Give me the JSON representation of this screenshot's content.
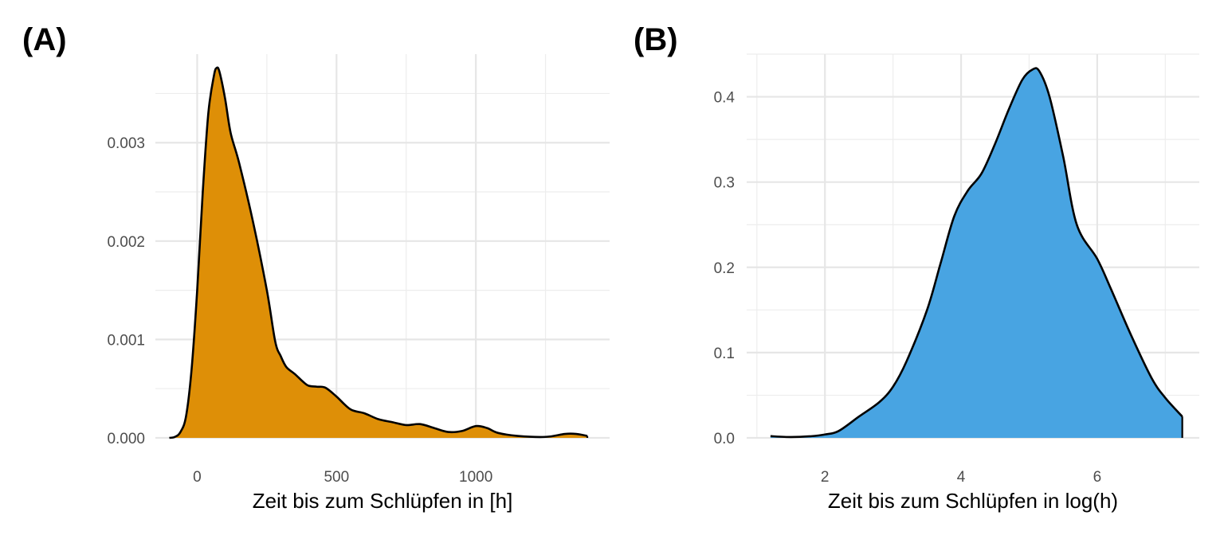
{
  "panels": [
    {
      "label": "(A)"
    },
    {
      "label": "(B)"
    }
  ],
  "chart_data": [
    {
      "type": "area",
      "fill_color": "#DE8F07",
      "line_color": "#000000",
      "xlabel": "Zeit bis zum Schlüpfen in [h]",
      "ylabel": "",
      "xlim": [
        -150,
        1480
      ],
      "ylim": [
        0,
        0.0039
      ],
      "x_ticks": [
        0,
        500,
        1000
      ],
      "x_tick_labels": [
        "0",
        "500",
        "1000"
      ],
      "y_ticks": [
        0,
        0.001,
        0.002,
        0.003
      ],
      "y_tick_labels": [
        "0.000",
        "0.001",
        "0.002",
        "0.003"
      ],
      "grid": true,
      "x": [
        -100,
        -80,
        -60,
        -40,
        -20,
        0,
        20,
        40,
        60,
        70,
        80,
        100,
        120,
        150,
        200,
        250,
        280,
        300,
        320,
        350,
        380,
        400,
        430,
        460,
        500,
        550,
        600,
        650,
        700,
        750,
        800,
        850,
        900,
        950,
        1000,
        1040,
        1080,
        1150,
        1250,
        1320,
        1360,
        1400
      ],
      "y": [
        0.0,
        1e-05,
        6e-05,
        0.00022,
        0.0007,
        0.0015,
        0.0025,
        0.0033,
        0.00368,
        0.00376,
        0.00372,
        0.00345,
        0.0031,
        0.0028,
        0.0022,
        0.0015,
        0.00098,
        0.00083,
        0.00072,
        0.00065,
        0.00057,
        0.00053,
        0.00052,
        0.00051,
        0.00042,
        0.00029,
        0.00025,
        0.00019,
        0.00016,
        0.00013,
        0.00014,
        0.0001,
        6e-05,
        7e-05,
        0.00012,
        0.0001,
        5e-05,
        2e-05,
        1e-05,
        4e-05,
        4e-05,
        2e-05
      ]
    },
    {
      "type": "area",
      "fill_color": "#48A4E2",
      "line_color": "#000000",
      "xlabel": "Zeit bis zum Schlüpfen in log(h)",
      "ylabel": "",
      "xlim": [
        0.85,
        7.5
      ],
      "ylim": [
        0,
        0.45
      ],
      "x_ticks": [
        2,
        4,
        6
      ],
      "x_tick_labels": [
        "2",
        "4",
        "6"
      ],
      "y_ticks": [
        0,
        0.1,
        0.2,
        0.3,
        0.4
      ],
      "y_tick_labels": [
        "0.0",
        "0.1",
        "0.2",
        "0.3",
        "0.4"
      ],
      "grid": true,
      "x": [
        1.2,
        1.5,
        1.8,
        2.0,
        2.2,
        2.5,
        2.8,
        3.0,
        3.2,
        3.5,
        3.7,
        3.9,
        4.1,
        4.3,
        4.5,
        4.7,
        4.9,
        5.05,
        5.15,
        5.3,
        5.5,
        5.7,
        6.0,
        6.2,
        6.5,
        6.8,
        7.0,
        7.25
      ],
      "y": [
        0.002,
        0.001,
        0.002,
        0.004,
        0.008,
        0.025,
        0.042,
        0.06,
        0.09,
        0.15,
        0.205,
        0.26,
        0.29,
        0.31,
        0.345,
        0.385,
        0.42,
        0.432,
        0.43,
        0.4,
        0.33,
        0.25,
        0.21,
        0.175,
        0.12,
        0.07,
        0.047,
        0.025
      ]
    }
  ]
}
